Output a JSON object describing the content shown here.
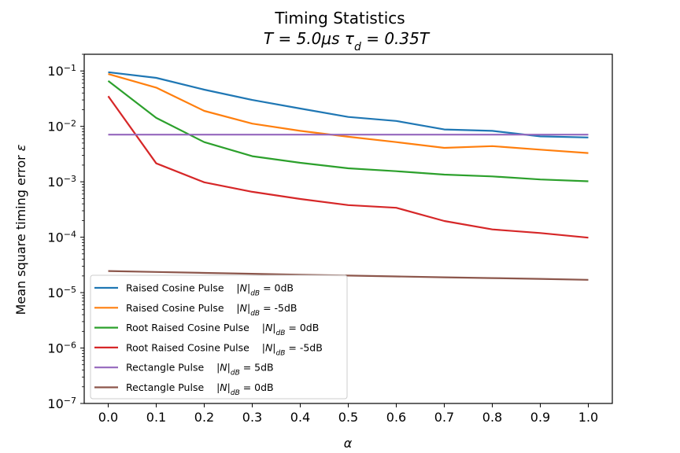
{
  "chart_data": {
    "type": "line",
    "title": "Timing Statistics",
    "subtitle": "T = 5.0μs    τd = 0.35T",
    "xlabel": "α",
    "ylabel": "Mean square timing error ε",
    "yscale": "log",
    "xlim": [
      -0.05,
      1.05
    ],
    "ylim": [
      1e-07,
      0.2
    ],
    "grid": false,
    "legend_position": "lower-left",
    "x": [
      0.0,
      0.1,
      0.2,
      0.3,
      0.4,
      0.5,
      0.6,
      0.7,
      0.8,
      0.9,
      1.0
    ],
    "x_tick_labels": [
      "0.0",
      "0.1",
      "0.2",
      "0.3",
      "0.4",
      "0.5",
      "0.6",
      "0.7",
      "0.8",
      "0.9",
      "1.0"
    ],
    "y_ticks": [
      {
        "value": 0.1,
        "base": "10",
        "exp": "−1"
      },
      {
        "value": 0.01,
        "base": "10",
        "exp": "−2"
      },
      {
        "value": 0.001,
        "base": "10",
        "exp": "−3"
      },
      {
        "value": 0.0001,
        "base": "10",
        "exp": "−4"
      },
      {
        "value": 1e-05,
        "base": "10",
        "exp": "−5"
      },
      {
        "value": 1e-06,
        "base": "10",
        "exp": "−6"
      },
      {
        "value": 1e-07,
        "base": "10",
        "exp": "−7"
      }
    ],
    "series": [
      {
        "name": "Raised Cosine Pulse    |N|dB = 0dB",
        "color": "#1f77b4",
        "values": [
          0.095,
          0.075,
          0.046,
          0.03,
          0.021,
          0.0148,
          0.0125,
          0.0088,
          0.0083,
          0.0066,
          0.0063
        ]
      },
      {
        "name": "Raised Cosine Pulse    |N|dB = -5dB",
        "color": "#ff7f0e",
        "values": [
          0.088,
          0.05,
          0.019,
          0.0112,
          0.0083,
          0.0065,
          0.0052,
          0.0041,
          0.0044,
          0.0038,
          0.0033
        ]
      },
      {
        "name": "Root Raised Cosine Pulse    |N|dB = 0dB",
        "color": "#2ca02c",
        "values": [
          0.066,
          0.0142,
          0.0052,
          0.0029,
          0.0022,
          0.00175,
          0.00155,
          0.00135,
          0.00125,
          0.0011,
          0.00102
        ]
      },
      {
        "name": "Root Raised Cosine Pulse    |N|dB = -5dB",
        "color": "#d62728",
        "values": [
          0.035,
          0.00215,
          0.00098,
          0.00066,
          0.00049,
          0.00038,
          0.00034,
          0.000196,
          0.000138,
          0.000119,
          9.8e-05
        ]
      },
      {
        "name": "Rectangle Pulse    |N|dB = 5dB",
        "color": "#9467bd",
        "values": [
          0.0071,
          0.0071,
          0.0071,
          0.0071,
          0.0071,
          0.0071,
          0.0071,
          0.0071,
          0.0071,
          0.0071,
          0.0071
        ]
      },
      {
        "name": "Rectangle Pulse    |N|dB = 0dB",
        "color": "#8c564b",
        "values": [
          2.45e-05,
          2.36e-05,
          2.27e-05,
          2.19e-05,
          2.1e-05,
          2.03e-05,
          1.96e-05,
          1.89e-05,
          1.83e-05,
          1.77e-05,
          1.7e-05
        ]
      }
    ]
  }
}
